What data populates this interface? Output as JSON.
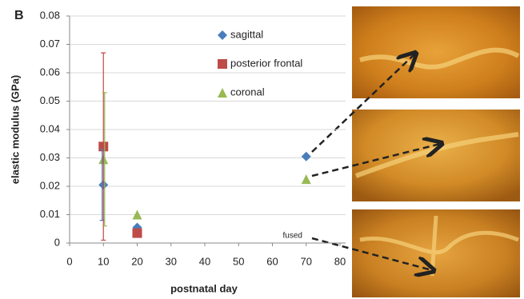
{
  "chart_data": {
    "type": "scatter",
    "panel_label": "B",
    "x_label": "postnatal day",
    "y_label": "elastic modulus (GPa)",
    "xlim": [
      0,
      80
    ],
    "xticks": [
      0,
      10,
      20,
      30,
      40,
      50,
      60,
      70,
      80
    ],
    "ylim": [
      0,
      0.08
    ],
    "yticks": [
      0,
      0.01,
      0.02,
      0.03,
      0.04,
      0.05,
      0.06,
      0.07,
      0.08
    ],
    "grid": true,
    "legend": "top",
    "annotation": "fused",
    "series": [
      {
        "name": "sagittal",
        "color": "#4a7ebb",
        "marker": "diamond",
        "x": [
          10,
          20,
          70
        ],
        "values": [
          0.0205,
          0.0055,
          0.0305
        ],
        "errors": [
          0.0125,
          null,
          null
        ]
      },
      {
        "name": "posterior frontal",
        "color": "#be4b48",
        "marker": "square",
        "x": [
          10,
          20
        ],
        "values": [
          0.034,
          0.0035
        ],
        "errors": [
          0.033,
          null
        ]
      },
      {
        "name": "coronal",
        "color": "#98b954",
        "marker": "triangle",
        "x": [
          10,
          20,
          70
        ],
        "values": [
          0.0295,
          0.01,
          0.0225
        ],
        "errors": [
          0.0235,
          null,
          null
        ]
      }
    ]
  }
}
